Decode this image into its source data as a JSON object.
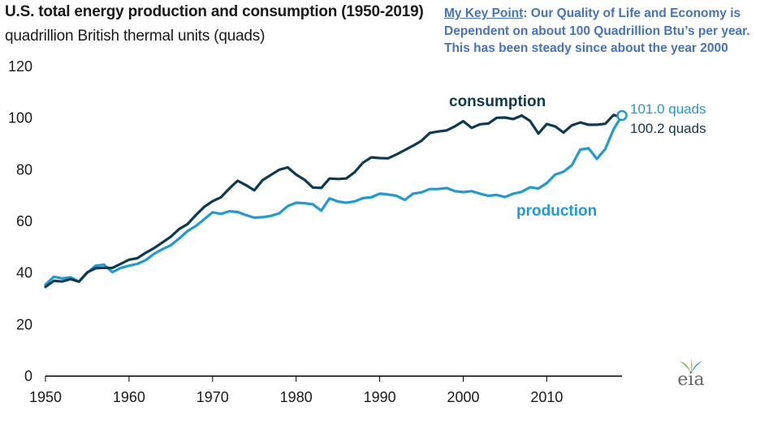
{
  "title": "U.S. total energy production and consumption (1950-2019)",
  "subtitle": "quadrillion British thermal units (quads)",
  "key_point": {
    "heading": "My Key Point",
    "text": ": Our Quality of Life and Economy is Dependent on about 100 Quadrillion Btu’s per year. This has been steady since about the year 2000"
  },
  "logo_text": "eia",
  "colors": {
    "consumption": "#0b3a53",
    "production": "#1e9ad6",
    "axis": "#000000",
    "key_point": "#4472c4"
  },
  "chart_data": {
    "type": "line",
    "title": "U.S. total energy production and consumption (1950-2019)",
    "subtitle": "quadrillion British thermal units (quads)",
    "xlim": [
      1950,
      2019
    ],
    "ylim": [
      0,
      120
    ],
    "x_ticks": [
      1950,
      1960,
      1970,
      1980,
      1990,
      2000,
      2010
    ],
    "y_ticks": [
      0,
      20,
      40,
      60,
      80,
      100,
      120
    ],
    "grid": false,
    "x": [
      1950,
      1951,
      1952,
      1953,
      1954,
      1955,
      1956,
      1957,
      1958,
      1959,
      1960,
      1961,
      1962,
      1963,
      1964,
      1965,
      1966,
      1967,
      1968,
      1969,
      1970,
      1971,
      1972,
      1973,
      1974,
      1975,
      1976,
      1977,
      1978,
      1979,
      1980,
      1981,
      1982,
      1983,
      1984,
      1985,
      1986,
      1987,
      1988,
      1989,
      1990,
      1991,
      1992,
      1993,
      1994,
      1995,
      1996,
      1997,
      1998,
      1999,
      2000,
      2001,
      2002,
      2003,
      2004,
      2005,
      2006,
      2007,
      2008,
      2009,
      2010,
      2011,
      2012,
      2013,
      2014,
      2015,
      2016,
      2017,
      2018,
      2019
    ],
    "series": [
      {
        "name": "consumption",
        "values": [
          34.6,
          36.9,
          36.7,
          37.6,
          36.6,
          40.2,
          41.8,
          42.0,
          41.9,
          43.5,
          45.1,
          45.7,
          47.8,
          49.6,
          51.8,
          54.0,
          57.0,
          58.9,
          62.4,
          65.6,
          67.8,
          69.3,
          72.7,
          75.7,
          74.0,
          72.0,
          76.0,
          78.0,
          80.0,
          80.9,
          78.1,
          76.1,
          73.1,
          72.9,
          76.6,
          76.4,
          76.6,
          79.0,
          82.7,
          84.8,
          84.5,
          84.4,
          85.9,
          87.6,
          89.3,
          91.2,
          94.2,
          94.8,
          95.2,
          96.8,
          98.8,
          96.2,
          97.6,
          97.9,
          100.1,
          100.2,
          99.6,
          101.0,
          98.9,
          94.0,
          97.7,
          96.8,
          94.4,
          97.2,
          98.3,
          97.4,
          97.4,
          97.8,
          101.2,
          100.2
        ]
      },
      {
        "name": "production",
        "values": [
          35.5,
          38.5,
          37.9,
          38.3,
          36.6,
          40.0,
          42.8,
          43.2,
          40.3,
          41.9,
          42.8,
          43.5,
          45.0,
          47.4,
          49.2,
          50.7,
          53.3,
          56.2,
          58.2,
          60.8,
          63.5,
          62.9,
          63.9,
          63.6,
          62.4,
          61.4,
          61.6,
          62.1,
          63.1,
          65.9,
          67.2,
          67.0,
          66.6,
          64.1,
          68.9,
          67.7,
          67.2,
          67.7,
          69.0,
          69.3,
          70.7,
          70.4,
          69.9,
          68.3,
          70.7,
          71.2,
          72.5,
          72.5,
          72.9,
          71.7,
          71.3,
          71.7,
          70.7,
          69.9,
          70.2,
          69.4,
          70.7,
          71.4,
          73.2,
          72.7,
          74.8,
          78.1,
          79.2,
          81.7,
          87.8,
          88.3,
          84.2,
          88.0,
          95.7,
          101.0
        ]
      }
    ],
    "series_labels": {
      "consumption": "consumption",
      "production": "production"
    },
    "annotations": {
      "production_end": "101.0 quads",
      "consumption_end": "100.2 quads"
    }
  }
}
